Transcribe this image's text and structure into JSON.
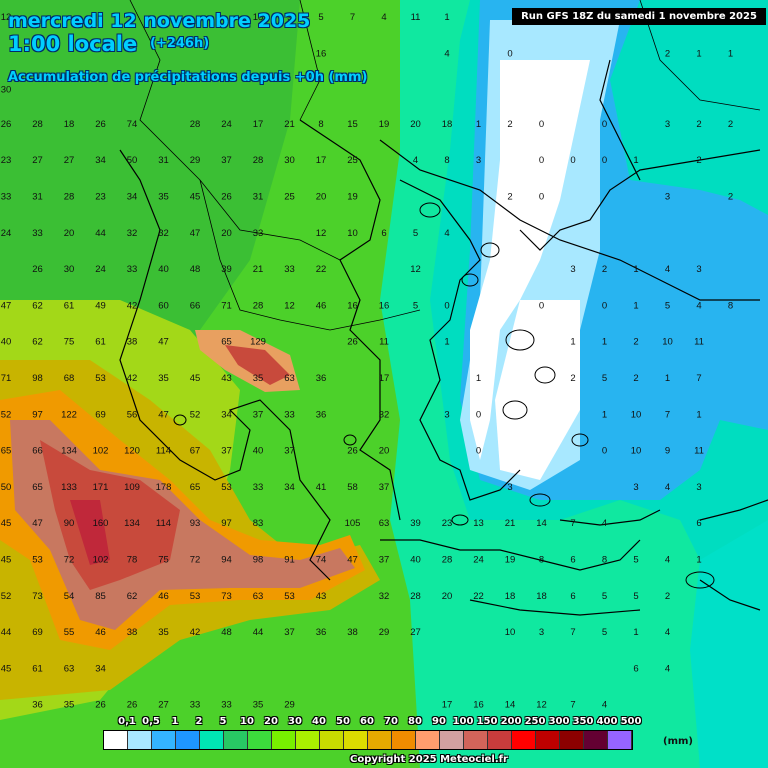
{
  "header": {
    "date_line": "mercredi 12 novembre 2025",
    "time_line": "1:00 locale",
    "lead_time": "(+246h)",
    "product": "Accumulation de précipitations depuis +0h (mm)"
  },
  "run_label": "Run GFS 18Z du samedi 1 novembre 2025",
  "copyright": "Copyright 2025 Meteociel.fr",
  "legend": {
    "unit": "(mm)",
    "labels": [
      "0,1",
      "0,5",
      "1",
      "2",
      "5",
      "10",
      "20",
      "30",
      "40",
      "50",
      "60",
      "70",
      "80",
      "90",
      "100",
      "150",
      "200",
      "250",
      "300",
      "350",
      "400",
      "500"
    ],
    "colors": [
      "#ffffff",
      "#a8e8ff",
      "#34b4ff",
      "#1e96ff",
      "#00e6b4",
      "#28c864",
      "#3cdc3c",
      "#78f000",
      "#aaf000",
      "#c8dc00",
      "#dcdc00",
      "#e6aa00",
      "#f08c00",
      "#ff9e6e",
      "#d2a0a0",
      "#d2645a",
      "#c83c3c",
      "#ff0000",
      "#be0000",
      "#8c0000",
      "#640032",
      "#9664ff"
    ]
  },
  "map": {
    "grid_values": [
      [
        "12",
        "",
        "",
        "",
        "",
        "",
        "",
        "",
        "18",
        "9",
        "5",
        "7",
        "4",
        "11",
        "1",
        "",
        "",
        "",
        "",
        "",
        "",
        "",
        "",
        "",
        ""
      ],
      [
        "",
        "",
        "",
        "",
        "",
        "",
        "",
        "",
        "",
        "",
        "16",
        "",
        "",
        "",
        "4",
        "",
        "0",
        "",
        "",
        "",
        "",
        "2",
        "1",
        "1",
        ""
      ],
      [
        "30",
        "",
        "",
        "",
        "",
        "",
        "",
        "",
        "",
        "",
        "",
        "",
        "",
        "",
        "",
        "",
        "",
        "",
        "",
        "",
        "",
        "",
        "",
        "",
        ""
      ],
      [
        "26",
        "28",
        "18",
        "26",
        "74",
        "",
        "28",
        "24",
        "17",
        "21",
        "8",
        "15",
        "19",
        "20",
        "18",
        "1",
        "2",
        "0",
        "",
        "0",
        "",
        "3",
        "2",
        "2",
        ""
      ],
      [
        "23",
        "27",
        "27",
        "34",
        "50",
        "31",
        "29",
        "37",
        "28",
        "30",
        "17",
        "25",
        "",
        "4",
        "8",
        "3",
        "",
        "0",
        "0",
        "0",
        "1",
        "",
        "2",
        "",
        ""
      ],
      [
        "33",
        "31",
        "28",
        "23",
        "34",
        "35",
        "45",
        "26",
        "31",
        "25",
        "20",
        "19",
        "",
        "",
        "",
        "",
        "2",
        "0",
        "",
        "",
        "",
        "3",
        "",
        "2",
        ""
      ],
      [
        "24",
        "33",
        "20",
        "44",
        "32",
        "32",
        "47",
        "20",
        "33",
        "",
        "12",
        "10",
        "6",
        "5",
        "4",
        "",
        "",
        "",
        "",
        "",
        "",
        "",
        "",
        "",
        ""
      ],
      [
        "",
        "26",
        "30",
        "24",
        "33",
        "40",
        "48",
        "39",
        "21",
        "33",
        "22",
        "",
        "",
        "12",
        "",
        "",
        "",
        "",
        "3",
        "2",
        "1",
        "4",
        "3",
        ""
      ],
      [
        "47",
        "62",
        "61",
        "49",
        "42",
        "60",
        "66",
        "71",
        "28",
        "12",
        "46",
        "16",
        "16",
        "5",
        "0",
        "",
        "",
        "0",
        "",
        "0",
        "1",
        "5",
        "4",
        "8",
        ""
      ],
      [
        "40",
        "62",
        "75",
        "61",
        "38",
        "47",
        "",
        "65",
        "129",
        "",
        "",
        "26",
        "11",
        "",
        "1",
        "",
        "",
        "",
        "1",
        "1",
        "2",
        "10",
        "11",
        ""
      ],
      [
        "71",
        "98",
        "68",
        "53",
        "42",
        "35",
        "45",
        "43",
        "35",
        "63",
        "36",
        "",
        "17",
        "",
        "",
        "1",
        "",
        "",
        "2",
        "5",
        "2",
        "1",
        "7",
        ""
      ],
      [
        "52",
        "97",
        "122",
        "69",
        "56",
        "47",
        "52",
        "34",
        "37",
        "33",
        "36",
        "",
        "32",
        "",
        "3",
        "0",
        "",
        "",
        "",
        "1",
        "10",
        "7",
        "1",
        ""
      ],
      [
        "65",
        "66",
        "134",
        "102",
        "120",
        "114",
        "67",
        "37",
        "40",
        "37",
        "",
        "26",
        "20",
        "",
        "",
        "0",
        "",
        "",
        "",
        "0",
        "10",
        "9",
        "11",
        ""
      ],
      [
        "50",
        "65",
        "133",
        "171",
        "109",
        "178",
        "65",
        "53",
        "33",
        "34",
        "41",
        "58",
        "37",
        "",
        "",
        "",
        "3",
        "",
        "",
        "",
        "3",
        "4",
        "3",
        ""
      ],
      [
        "45",
        "47",
        "90",
        "160",
        "134",
        "114",
        "93",
        "97",
        "83",
        "",
        "",
        "105",
        "63",
        "39",
        "23",
        "13",
        "21",
        "14",
        "7",
        "4",
        "",
        "",
        "6",
        ""
      ],
      [
        "45",
        "53",
        "72",
        "102",
        "78",
        "75",
        "72",
        "94",
        "98",
        "91",
        "74",
        "47",
        "37",
        "40",
        "28",
        "24",
        "19",
        "8",
        "6",
        "8",
        "5",
        "4",
        "1",
        ""
      ],
      [
        "52",
        "73",
        "54",
        "85",
        "62",
        "46",
        "53",
        "73",
        "63",
        "53",
        "43",
        "",
        "32",
        "28",
        "20",
        "22",
        "18",
        "18",
        "6",
        "5",
        "5",
        "2",
        ""
      ],
      [
        "44",
        "69",
        "55",
        "46",
        "38",
        "35",
        "42",
        "48",
        "44",
        "37",
        "36",
        "38",
        "29",
        "27",
        "",
        "",
        "10",
        "3",
        "7",
        "5",
        "1",
        "4",
        "",
        ""
      ],
      [
        "45",
        "61",
        "63",
        "34",
        "",
        "",
        "",
        "",
        "",
        "",
        "",
        "",
        "",
        "",
        "",
        "",
        "",
        "",
        "",
        "",
        "6",
        "4",
        ""
      ],
      [
        "",
        "36",
        "35",
        "26",
        "26",
        "27",
        "33",
        "33",
        "35",
        "29",
        "",
        "",
        "",
        "",
        "17",
        "16",
        "14",
        "12",
        "7",
        "4",
        "",
        ""
      ]
    ]
  }
}
